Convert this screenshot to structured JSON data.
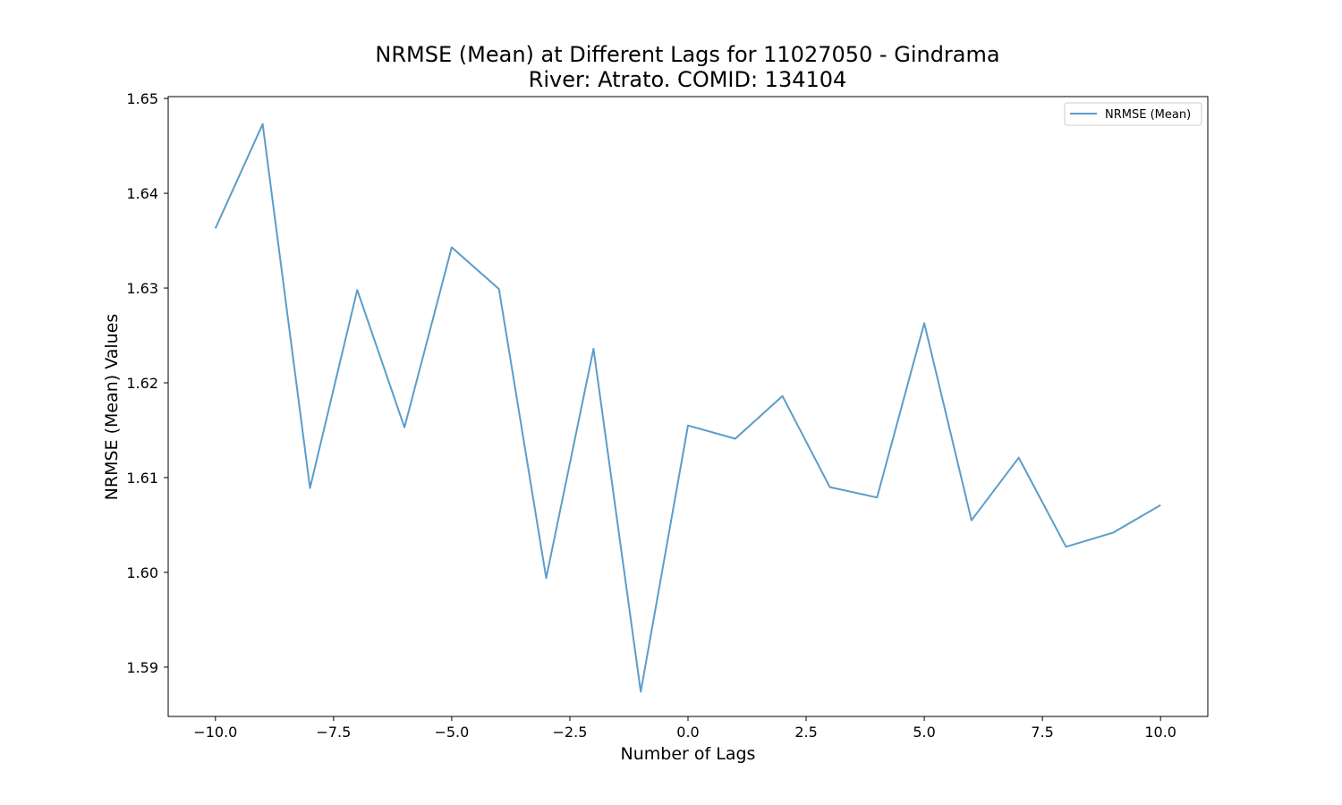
{
  "chart_data": {
    "type": "line",
    "title": [
      "NRMSE (Mean) at Different Lags for 11027050 - Gindrama",
      "River: Atrato. COMID: 134104"
    ],
    "xlabel": "Number of Lags",
    "ylabel": "NRMSE (Mean) Values",
    "xlim": [
      -11,
      11
    ],
    "ylim": [
      1.5848,
      1.6502
    ],
    "xticks": [
      -10.0,
      -7.5,
      -5.0,
      -2.5,
      0.0,
      2.5,
      5.0,
      7.5,
      10.0
    ],
    "xtick_labels": [
      "−10.0",
      "−7.5",
      "−5.0",
      "−2.5",
      "0.0",
      "2.5",
      "5.0",
      "7.5",
      "10.0"
    ],
    "yticks": [
      1.59,
      1.6,
      1.61,
      1.62,
      1.63,
      1.64,
      1.65
    ],
    "ytick_labels": [
      "1.59",
      "1.60",
      "1.61",
      "1.62",
      "1.63",
      "1.64",
      "1.65"
    ],
    "grid": false,
    "legend_position": "top-right",
    "series": [
      {
        "name": "NRMSE (Mean)",
        "color": "#5b9dcb",
        "x": [
          -10,
          -9,
          -8,
          -7,
          -6,
          -5,
          -4,
          -3,
          -2,
          -1,
          0,
          1,
          2,
          3,
          4,
          5,
          6,
          7,
          8,
          9,
          10
        ],
        "y": [
          1.6363,
          1.6473,
          1.6089,
          1.6298,
          1.6153,
          1.6343,
          1.6299,
          1.5994,
          1.6236,
          1.5874,
          1.6155,
          1.6141,
          1.6186,
          1.609,
          1.6079,
          1.6263,
          1.6055,
          1.6121,
          1.6027,
          1.6042,
          1.6071
        ]
      }
    ]
  }
}
